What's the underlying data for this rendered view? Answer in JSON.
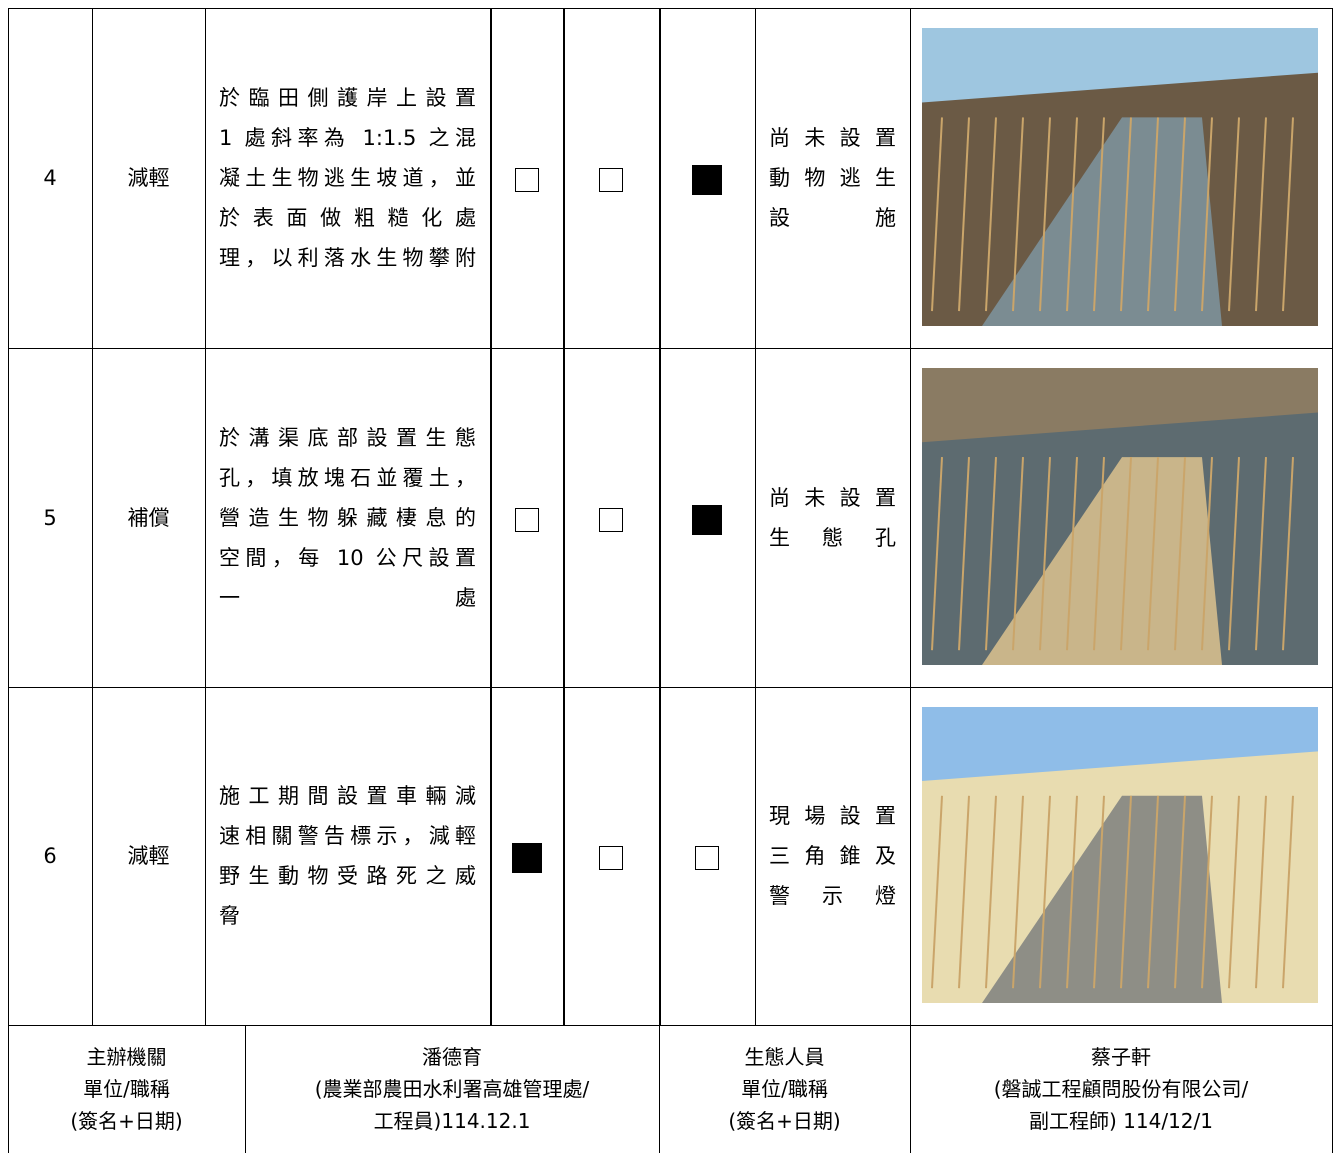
{
  "rows": [
    {
      "no": "4",
      "category": "減輕",
      "description": [
        "於臨田側護岸上設置",
        "1 處斜率為 1:1.5 之混",
        "凝土生物逃生坡道，並",
        "於表面做粗糙化處",
        "理，以利落水生物攀附"
      ],
      "checks": [
        false,
        false,
        true
      ],
      "status": [
        "尚未設置",
        "動物逃生",
        "設施"
      ]
    },
    {
      "no": "5",
      "category": "補償",
      "description": [
        "於溝渠底部設置生態",
        "孔，填放塊石並覆土，",
        "營造生物躲藏棲息的",
        "空間，每 10 公尺設置",
        "一處"
      ],
      "checks": [
        false,
        false,
        true
      ],
      "status": [
        "尚未設置",
        "生態孔"
      ]
    },
    {
      "no": "6",
      "category": "減輕",
      "description": [
        "施工期間設置車輛減",
        "速相關警告標示，減輕",
        "野生動物受路死之威",
        "脅"
      ],
      "checks": [
        true,
        false,
        false
      ],
      "status": [
        "現場設置",
        "三角錐及",
        "警示燈"
      ]
    }
  ],
  "footer": [
    [
      "主辦機關",
      "單位/職稱",
      "(簽名+日期)"
    ],
    [
      "潘德育",
      "(農業部農田水利署高雄管理處/",
      "工程員)114.12.1"
    ],
    [
      "生態人員",
      "單位/職稱",
      "(簽名+日期)"
    ],
    [
      "蔡子軒",
      "(磐誠工程顧問股份有限公司/",
      "副工程師) 114/12/1"
    ]
  ]
}
